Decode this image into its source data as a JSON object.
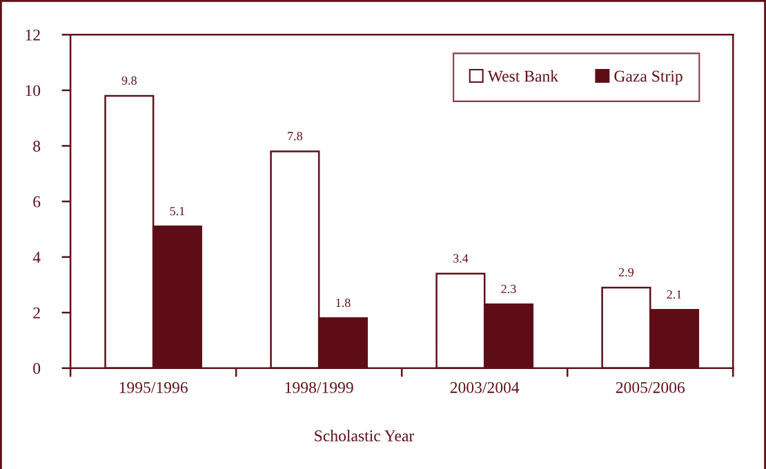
{
  "chart_data": {
    "type": "bar",
    "xlabel": "Scholastic Year",
    "categories": [
      "1995/1996",
      "1998/1999",
      "2003/2004",
      "2005/2006"
    ],
    "series": [
      {
        "name": "West Bank",
        "color": "#ffffff",
        "values": [
          9.8,
          7.8,
          3.4,
          2.9
        ]
      },
      {
        "name": "Gaza Strip",
        "color": "#5e0c16",
        "values": [
          5.1,
          1.8,
          2.3,
          2.1
        ]
      }
    ],
    "ylim": [
      0,
      12
    ],
    "yticks": [
      0,
      2,
      4,
      6,
      8,
      10,
      12
    ],
    "data_labels": true,
    "legend": "top right"
  }
}
